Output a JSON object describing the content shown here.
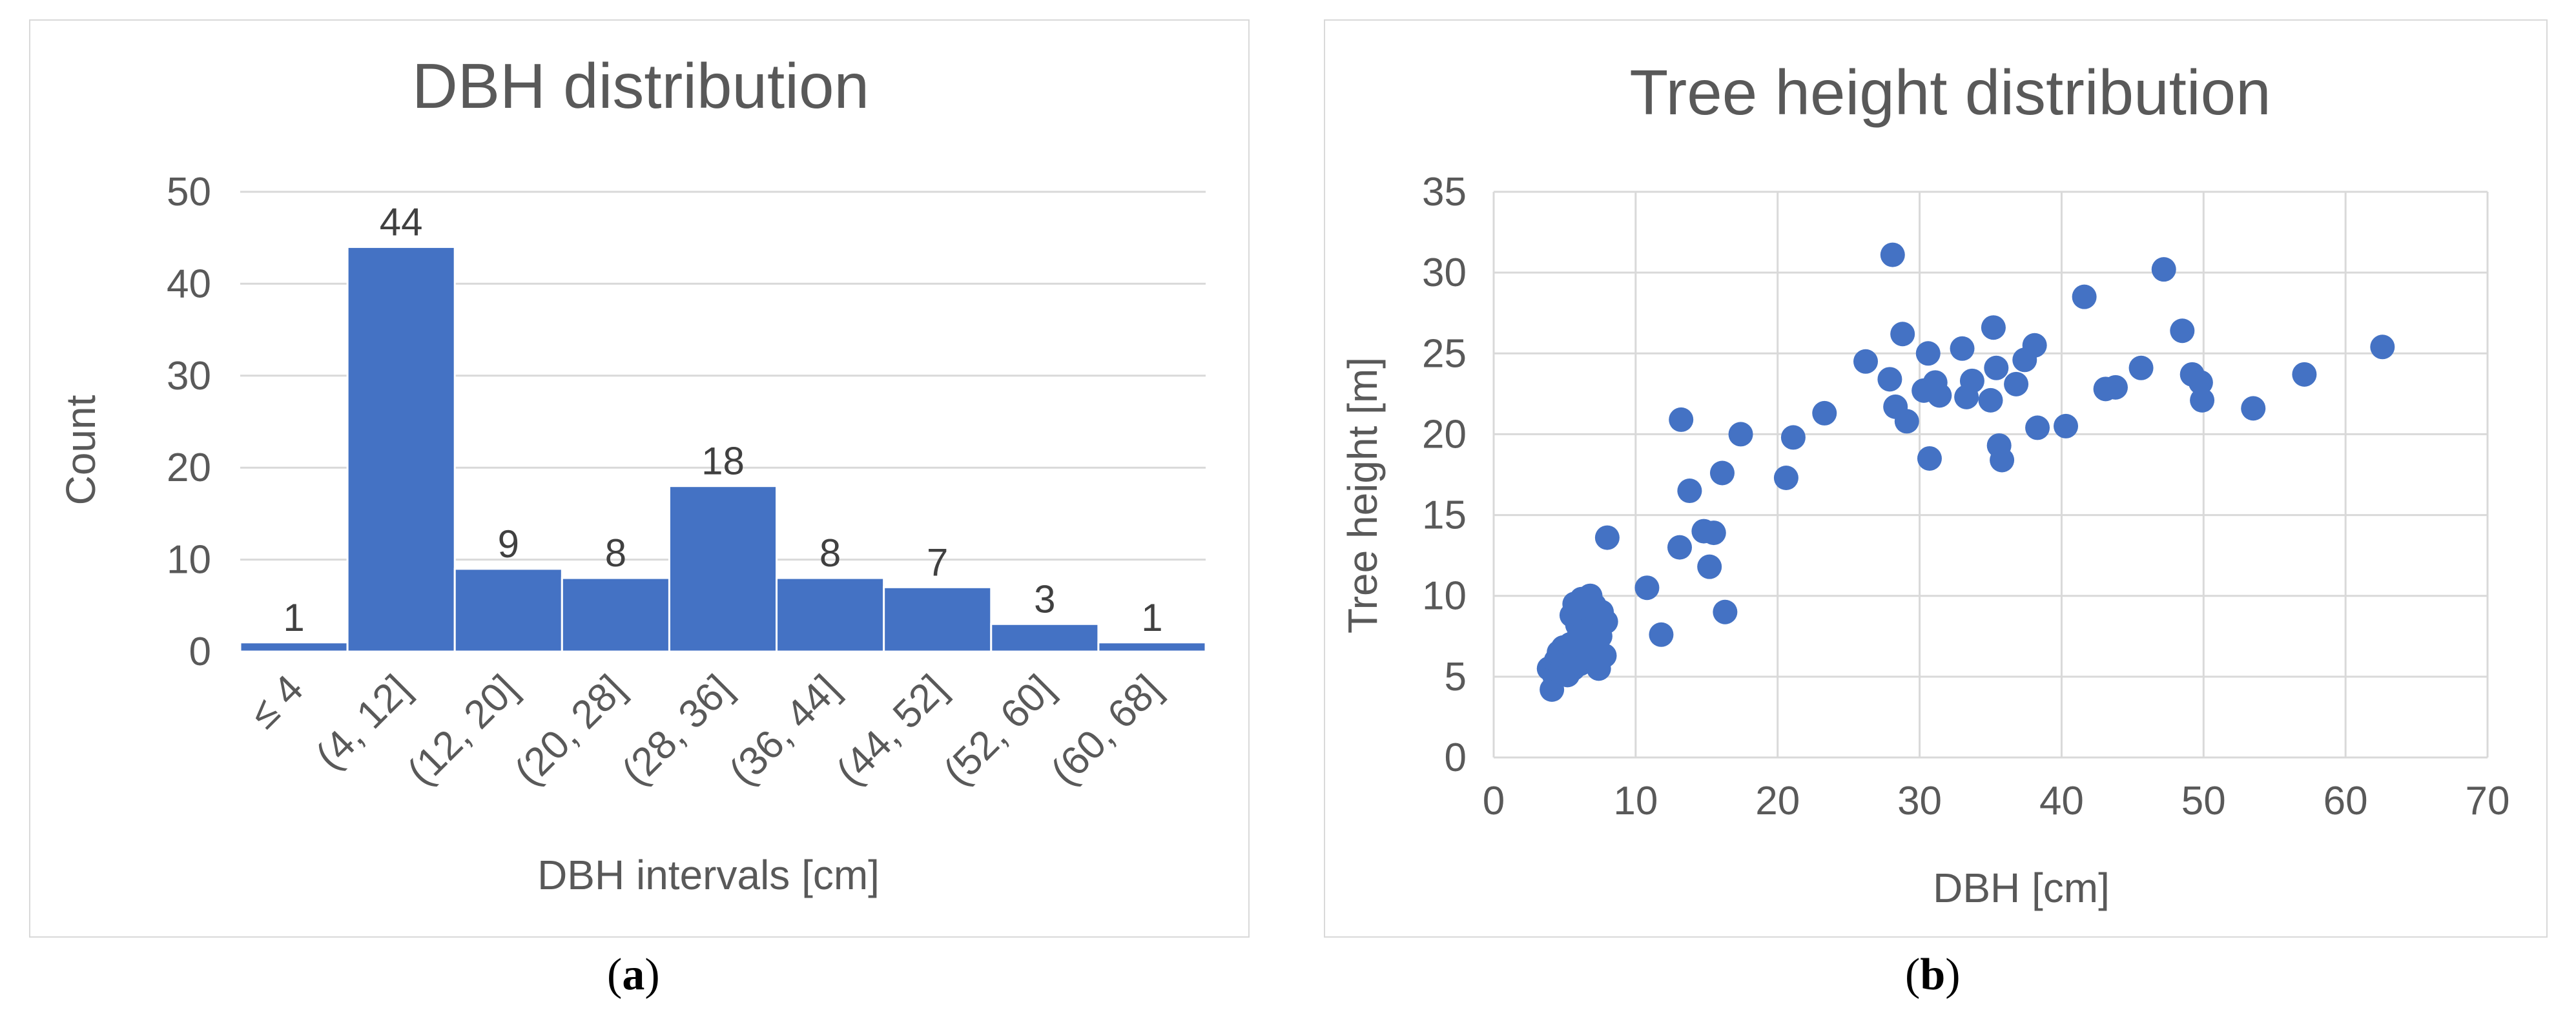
{
  "chart_data": [
    {
      "type": "bar",
      "title": "DBH distribution",
      "xlabel": "DBH intervals [cm]",
      "ylabel": "Count",
      "categories": [
        "≤ 4",
        "(4, 12]",
        "(12, 20]",
        "(20, 28]",
        "(28, 36]",
        "(36, 44]",
        "(44, 52]",
        "(52, 60]",
        "(60, 68]"
      ],
      "values": [
        1,
        44,
        9,
        8,
        18,
        8,
        7,
        3,
        1
      ],
      "ylim": [
        0,
        50
      ],
      "yticks": [
        0,
        10,
        20,
        30,
        40,
        50
      ],
      "grid": true,
      "color": "#4472c4"
    },
    {
      "type": "scatter",
      "title": "Tree height distribution",
      "xlabel": "DBH [cm]",
      "ylabel": "Tree height [m]",
      "xlim": [
        0,
        70
      ],
      "ylim": [
        0,
        35
      ],
      "xticks": [
        0,
        10,
        20,
        30,
        40,
        50,
        60,
        70
      ],
      "yticks": [
        0,
        5,
        10,
        15,
        20,
        25,
        30,
        35
      ],
      "grid": true,
      "color": "#4472c4",
      "points": [
        [
          3.9,
          5.5
        ],
        [
          4.1,
          4.2
        ],
        [
          4.3,
          5.0
        ],
        [
          4.4,
          6.0
        ],
        [
          4.6,
          6.5
        ],
        [
          4.7,
          5.3
        ],
        [
          4.9,
          6.8
        ],
        [
          5.0,
          5.8
        ],
        [
          5.2,
          5.1
        ],
        [
          5.3,
          6.2
        ],
        [
          5.4,
          7.0
        ],
        [
          5.5,
          8.8
        ],
        [
          5.6,
          5.5
        ],
        [
          5.7,
          9.5
        ],
        [
          5.8,
          6.5
        ],
        [
          5.9,
          8.2
        ],
        [
          6.0,
          7.5
        ],
        [
          6.1,
          5.8
        ],
        [
          6.2,
          9.8
        ],
        [
          6.3,
          6.9
        ],
        [
          6.4,
          8.6
        ],
        [
          6.5,
          7.8
        ],
        [
          6.6,
          9.2
        ],
        [
          6.7,
          6.2
        ],
        [
          6.8,
          10.0
        ],
        [
          6.9,
          8.0
        ],
        [
          7.0,
          7.2
        ],
        [
          7.1,
          9.4
        ],
        [
          7.2,
          6.6
        ],
        [
          7.3,
          8.9
        ],
        [
          7.4,
          5.5
        ],
        [
          7.5,
          7.5
        ],
        [
          7.6,
          9.0
        ],
        [
          7.8,
          6.3
        ],
        [
          7.9,
          8.4
        ],
        [
          8.0,
          13.6
        ],
        [
          10.8,
          10.5
        ],
        [
          11.8,
          7.6
        ],
        [
          13.1,
          13.0
        ],
        [
          13.2,
          20.9
        ],
        [
          13.8,
          16.5
        ],
        [
          14.8,
          14.0
        ],
        [
          15.2,
          11.8
        ],
        [
          15.5,
          13.9
        ],
        [
          16.1,
          17.6
        ],
        [
          16.3,
          9.0
        ],
        [
          17.4,
          20.0
        ],
        [
          20.6,
          17.3
        ],
        [
          21.1,
          19.8
        ],
        [
          23.3,
          21.3
        ],
        [
          26.2,
          24.5
        ],
        [
          27.9,
          23.4
        ],
        [
          28.1,
          31.1
        ],
        [
          28.3,
          21.7
        ],
        [
          28.8,
          26.2
        ],
        [
          29.1,
          20.8
        ],
        [
          30.3,
          22.7
        ],
        [
          30.6,
          25.0
        ],
        [
          30.7,
          18.5
        ],
        [
          31.1,
          23.2
        ],
        [
          31.4,
          22.4
        ],
        [
          33.0,
          25.3
        ],
        [
          33.3,
          22.3
        ],
        [
          33.7,
          23.3
        ],
        [
          35.0,
          22.1
        ],
        [
          35.2,
          26.6
        ],
        [
          35.4,
          24.1
        ],
        [
          35.6,
          19.3
        ],
        [
          35.8,
          18.4
        ],
        [
          36.8,
          23.1
        ],
        [
          37.4,
          24.6
        ],
        [
          38.1,
          25.5
        ],
        [
          38.3,
          20.4
        ],
        [
          40.3,
          20.5
        ],
        [
          41.6,
          28.5
        ],
        [
          43.1,
          22.8
        ],
        [
          43.8,
          22.9
        ],
        [
          45.6,
          24.1
        ],
        [
          47.2,
          30.2
        ],
        [
          48.5,
          26.4
        ],
        [
          49.2,
          23.7
        ],
        [
          49.8,
          23.2
        ],
        [
          49.9,
          22.1
        ],
        [
          53.5,
          21.6
        ],
        [
          57.1,
          23.7
        ],
        [
          62.6,
          25.4
        ]
      ]
    }
  ],
  "captions": {
    "a": "a",
    "b": "b"
  }
}
